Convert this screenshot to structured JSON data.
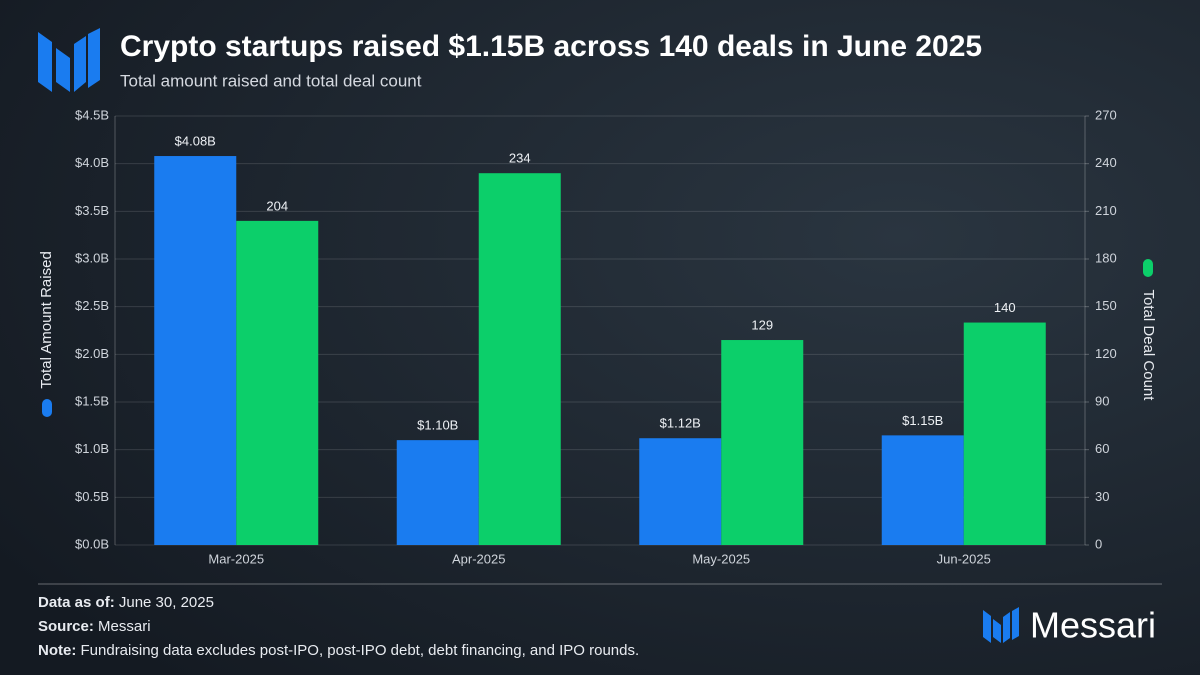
{
  "chart_data": {
    "type": "bar",
    "title": "Crypto startups raised $1.15B across 140 deals in June 2025",
    "subtitle": "Total amount raised and total deal count",
    "categories": [
      "Mar-2025",
      "Apr-2025",
      "May-2025",
      "Jun-2025"
    ],
    "series": [
      {
        "name": "Total Amount Raised",
        "color": "#1a7cf0",
        "values": [
          4.08,
          1.1,
          1.12,
          1.15
        ],
        "value_labels": [
          "$4.08B",
          "$1.10B",
          "$1.12B",
          "$1.15B"
        ]
      },
      {
        "name": "Total Deal Count",
        "color": "#0ccf6a",
        "axis": "y2",
        "values": [
          204,
          234,
          129,
          140
        ]
      }
    ],
    "ylim": [
      0,
      4.5
    ],
    "yticks": [
      {
        "value": 0,
        "label": "$0.0B"
      },
      {
        "value": 0.5,
        "label": "$0.5B"
      },
      {
        "value": 1,
        "label": "$1.0B"
      },
      {
        "value": 1.5,
        "label": "$1.5B"
      },
      {
        "value": 2,
        "label": "$2.0B"
      },
      {
        "value": 2.5,
        "label": "$2.5B"
      },
      {
        "value": 3,
        "label": "$3.0B"
      },
      {
        "value": 3.5,
        "label": "$3.5B"
      },
      {
        "value": 4,
        "label": "$4.0B"
      },
      {
        "value": 4.5,
        "label": "$4.5B"
      }
    ],
    "y2lim": [
      0,
      270
    ],
    "y2ticks": [
      0,
      30,
      60,
      90,
      120,
      150,
      180,
      210,
      240,
      270
    ],
    "grid": true
  },
  "footer": [
    {
      "label": "Data as of:",
      "text": "June 30, 2025"
    },
    {
      "label": "Source:",
      "text": "Messari"
    },
    {
      "label": "Note:",
      "text": "Fundraising data excludes post-IPO, post-IPO debt, debt financing, and IPO rounds."
    }
  ],
  "brand": "Messari"
}
